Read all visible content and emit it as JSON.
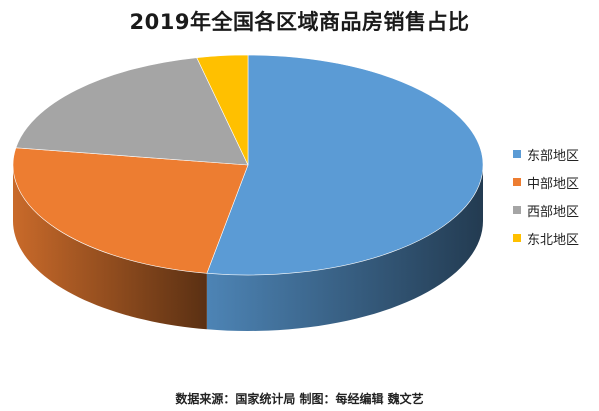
{
  "chart_data": {
    "type": "pie",
    "title": "2019年全国各区域商品房销售占比",
    "slices": [
      {
        "label": "东部地区",
        "value": 52.8,
        "color": "#5B9BD5"
      },
      {
        "label": "中部地区",
        "value": 24.7,
        "color": "#ED7D31"
      },
      {
        "label": "西部地区",
        "value": 19.0,
        "color": "#A5A5A5"
      },
      {
        "label": "东北地区",
        "value": 3.5,
        "color": "#FFC000"
      }
    ],
    "legend_position": "right",
    "three_d": true
  },
  "footer": {
    "source": "数据来源：国家统计局  制图：每经编辑 魏文艺"
  }
}
